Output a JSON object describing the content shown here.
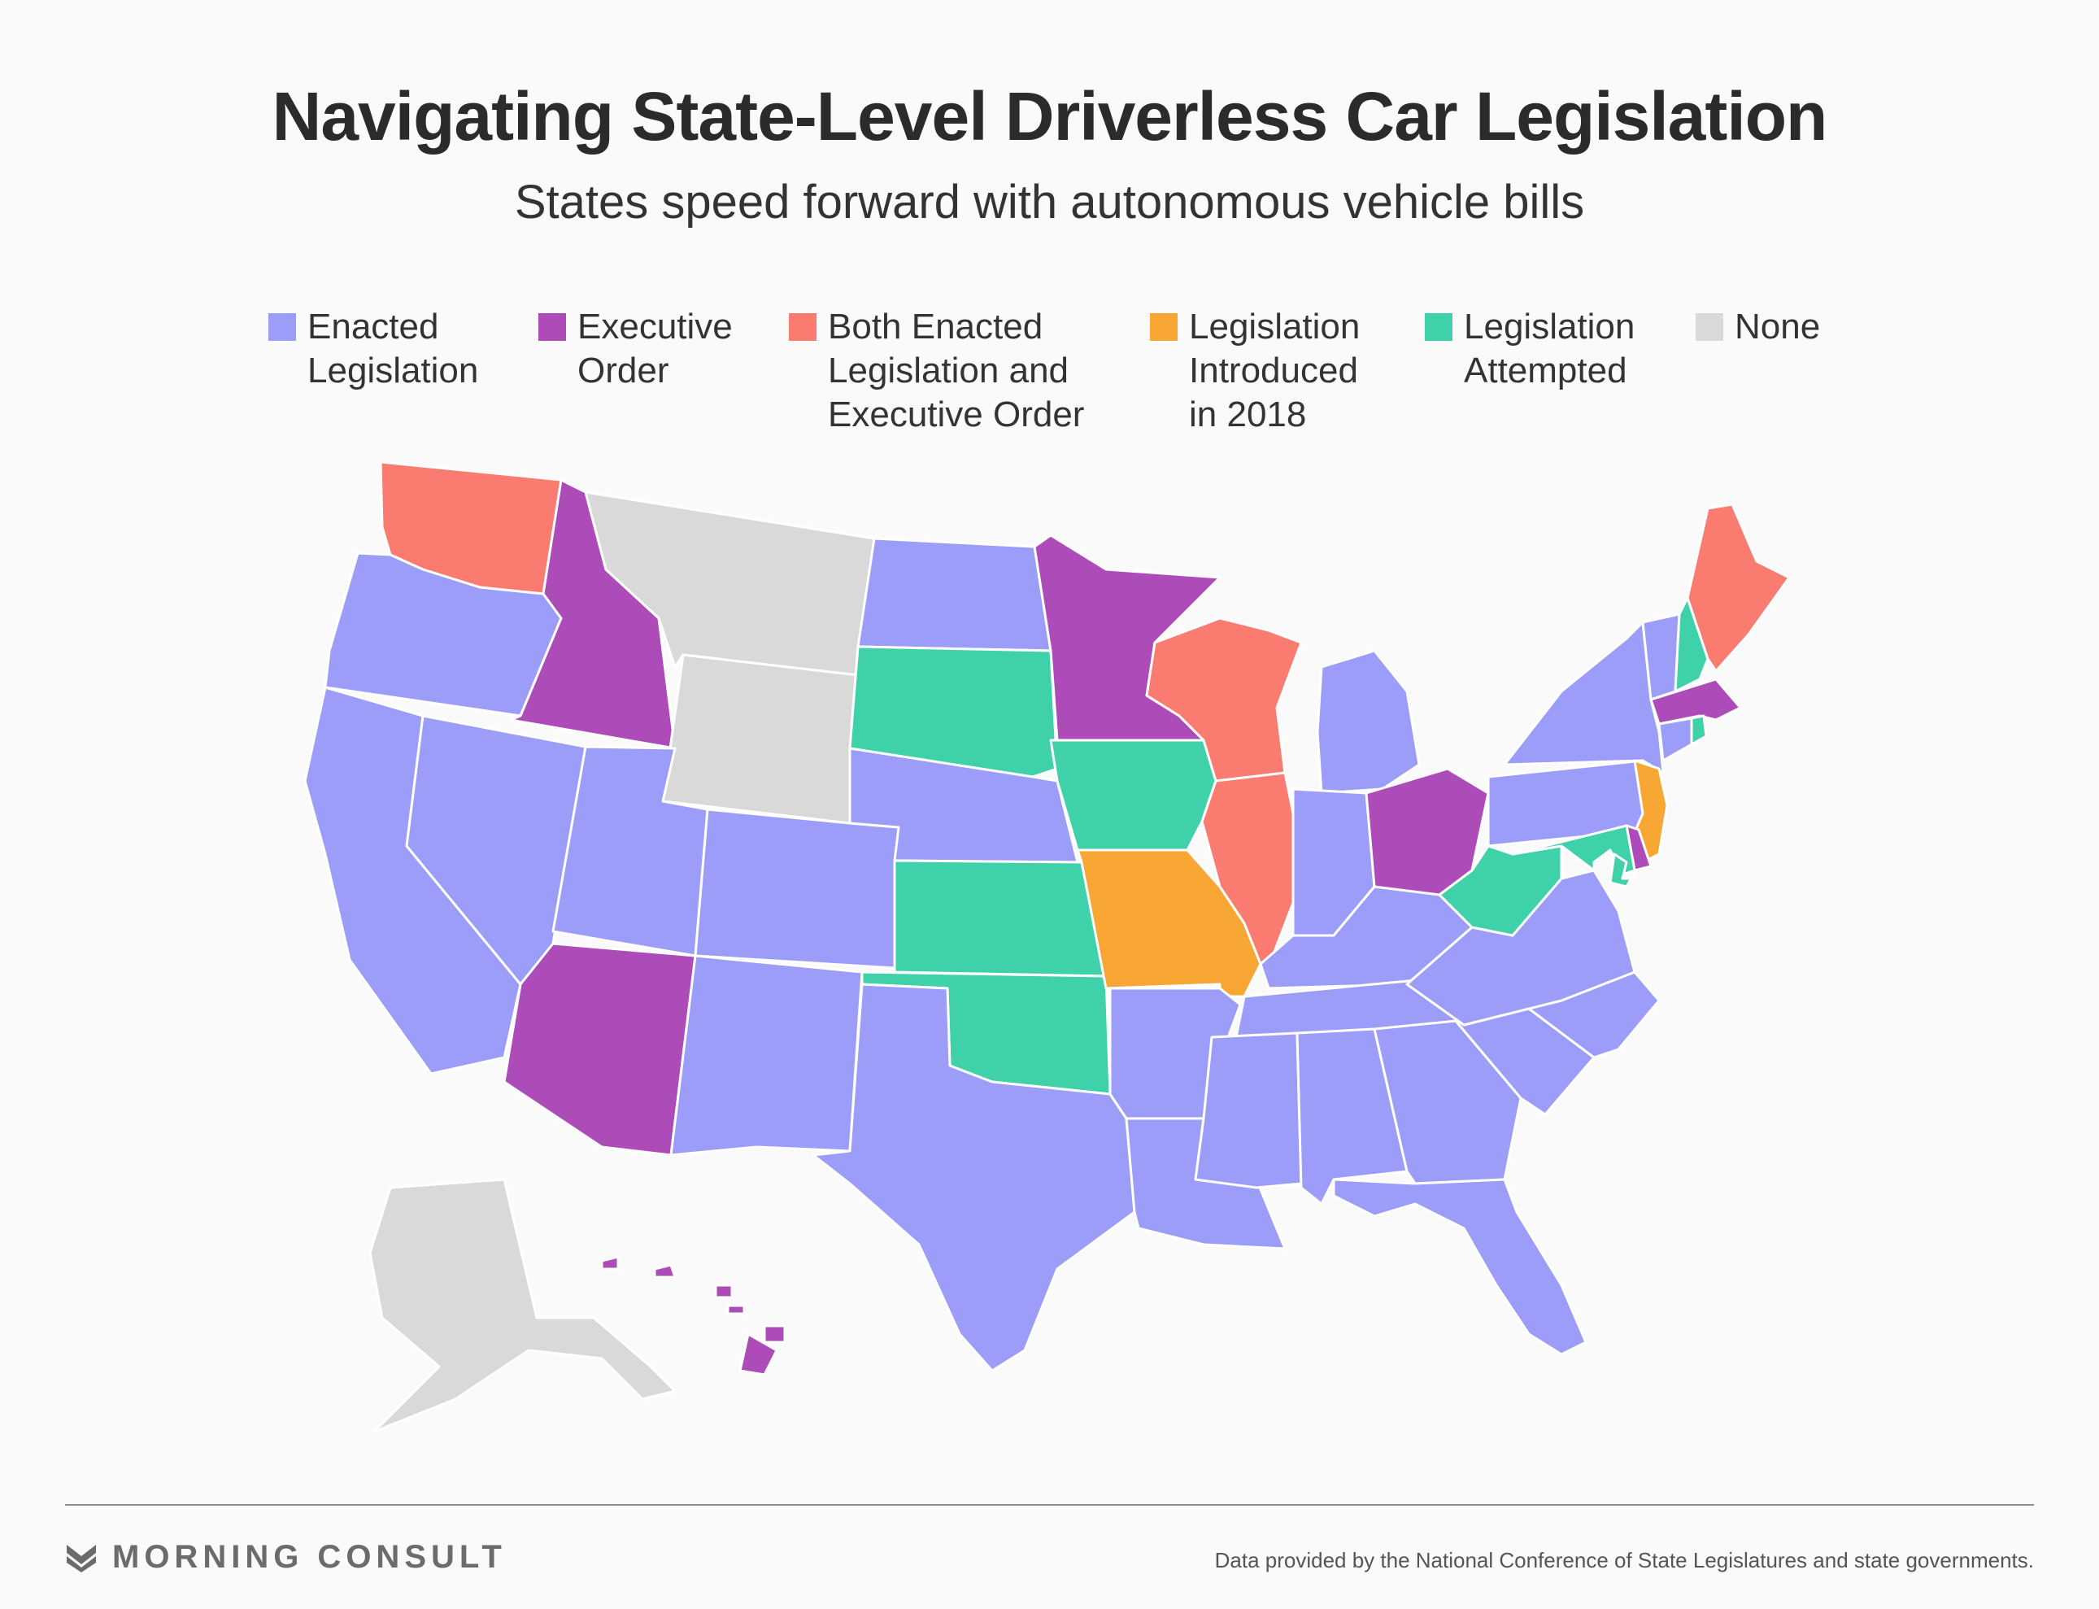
{
  "title": "Navigating State-Level Driverless Car Legislation",
  "subtitle": "States speed forward with autonomous vehicle bills",
  "colors": {
    "enacted": "#9b9df8",
    "executive": "#ad4bb8",
    "both": "#fa7b6f",
    "introduced_2018": "#f8a634",
    "attempted": "#3fd1a9",
    "none": "#d9d9d9",
    "border": "#ffffff"
  },
  "legend": [
    {
      "key": "enacted",
      "label": "Enacted\nLegislation"
    },
    {
      "key": "executive",
      "label": "Executive\nOrder"
    },
    {
      "key": "both",
      "label": "Both Enacted\nLegislation and\nExecutive Order"
    },
    {
      "key": "introduced_2018",
      "label": "Legislation\nIntroduced\nin 2018"
    },
    {
      "key": "attempted",
      "label": "Legislation\nAttempted"
    },
    {
      "key": "none",
      "label": "None"
    }
  ],
  "states": [
    {
      "id": "WA",
      "status": "both"
    },
    {
      "id": "OR",
      "status": "enacted"
    },
    {
      "id": "CA",
      "status": "enacted"
    },
    {
      "id": "NV",
      "status": "enacted"
    },
    {
      "id": "ID",
      "status": "executive"
    },
    {
      "id": "MT",
      "status": "none"
    },
    {
      "id": "WY",
      "status": "none"
    },
    {
      "id": "UT",
      "status": "enacted"
    },
    {
      "id": "AZ",
      "status": "executive"
    },
    {
      "id": "CO",
      "status": "enacted"
    },
    {
      "id": "NM",
      "status": "enacted"
    },
    {
      "id": "ND",
      "status": "enacted"
    },
    {
      "id": "SD",
      "status": "attempted"
    },
    {
      "id": "NE",
      "status": "enacted"
    },
    {
      "id": "KS",
      "status": "attempted"
    },
    {
      "id": "OK",
      "status": "attempted"
    },
    {
      "id": "TX",
      "status": "enacted"
    },
    {
      "id": "MN",
      "status": "executive"
    },
    {
      "id": "IA",
      "status": "attempted"
    },
    {
      "id": "MO",
      "status": "introduced_2018"
    },
    {
      "id": "AR",
      "status": "enacted"
    },
    {
      "id": "LA",
      "status": "enacted"
    },
    {
      "id": "WI",
      "status": "both"
    },
    {
      "id": "IL",
      "status": "both"
    },
    {
      "id": "MI",
      "status": "enacted"
    },
    {
      "id": "IN",
      "status": "enacted"
    },
    {
      "id": "OH",
      "status": "executive"
    },
    {
      "id": "KY",
      "status": "enacted"
    },
    {
      "id": "TN",
      "status": "enacted"
    },
    {
      "id": "MS",
      "status": "enacted"
    },
    {
      "id": "AL",
      "status": "enacted"
    },
    {
      "id": "GA",
      "status": "enacted"
    },
    {
      "id": "FL",
      "status": "enacted"
    },
    {
      "id": "SC",
      "status": "enacted"
    },
    {
      "id": "NC",
      "status": "enacted"
    },
    {
      "id": "VA",
      "status": "enacted"
    },
    {
      "id": "WV",
      "status": "attempted"
    },
    {
      "id": "PA",
      "status": "enacted"
    },
    {
      "id": "NY",
      "status": "enacted"
    },
    {
      "id": "NJ",
      "status": "introduced_2018"
    },
    {
      "id": "DE",
      "status": "executive"
    },
    {
      "id": "MD",
      "status": "attempted"
    },
    {
      "id": "DC",
      "status": "attempted"
    },
    {
      "id": "VT",
      "status": "enacted"
    },
    {
      "id": "NH",
      "status": "attempted"
    },
    {
      "id": "ME",
      "status": "both"
    },
    {
      "id": "MA",
      "status": "executive"
    },
    {
      "id": "CT",
      "status": "enacted"
    },
    {
      "id": "RI",
      "status": "attempted"
    },
    {
      "id": "AK",
      "status": "none"
    },
    {
      "id": "HI",
      "status": "executive"
    }
  ],
  "brand": "MORNING CONSULT",
  "source": "Data provided by the National Conference of State Legislatures and state governments."
}
